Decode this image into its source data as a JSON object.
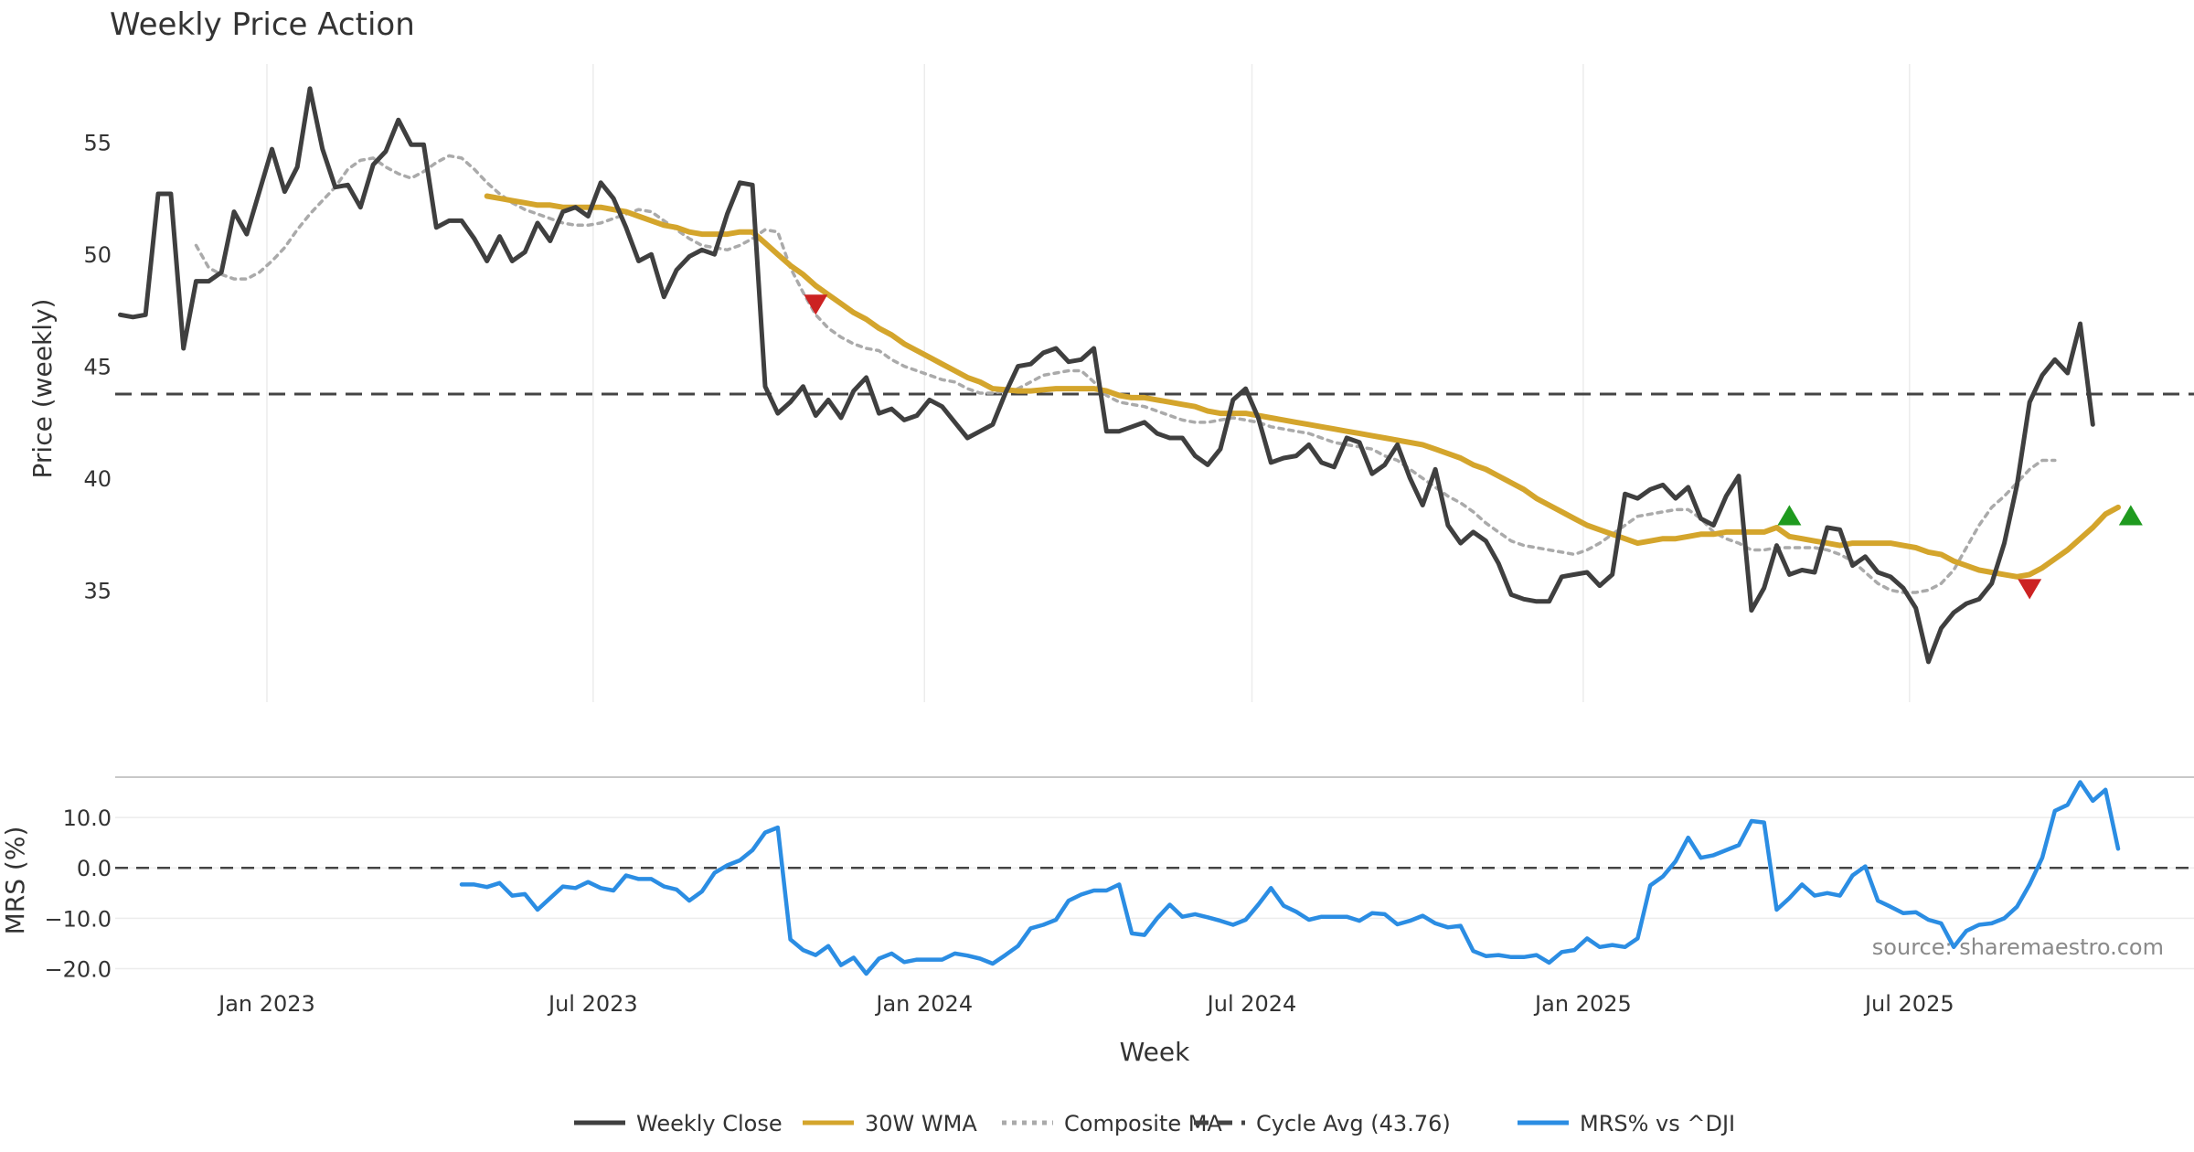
{
  "chart_data": [
    {
      "type": "line",
      "title": "Weekly Price Action",
      "ylabel": "Price (weekly)",
      "xlabel": "",
      "ylim": [
        30,
        58.5
      ],
      "yticks": [
        35,
        40,
        45,
        50,
        55
      ],
      "x_start": "2022-11-07",
      "x_step_weeks": 1,
      "reference_line": {
        "name": "Cycle Avg (43.76)",
        "value": 43.76,
        "style": "dashed"
      },
      "series": [
        {
          "name": "Weekly Close",
          "color": "#3f3f3f",
          "start_index": 0,
          "values": [
            47.3,
            47.2,
            47.3,
            52.7,
            52.7,
            45.8,
            48.8,
            48.8,
            49.2,
            51.9,
            50.9,
            52.8,
            54.7,
            52.8,
            53.9,
            57.4,
            54.7,
            53.0,
            53.1,
            52.1,
            54.0,
            54.6,
            56.0,
            54.9,
            54.9,
            51.2,
            51.5,
            51.5,
            50.7,
            49.7,
            50.8,
            49.7,
            50.1,
            51.4,
            50.6,
            51.9,
            52.1,
            51.7,
            53.2,
            52.5,
            51.2,
            49.7,
            50.0,
            48.1,
            49.3,
            49.9,
            50.2,
            50.0,
            51.8,
            53.2,
            53.1,
            44.1,
            42.9,
            43.4,
            44.1,
            42.8,
            43.5,
            42.7,
            43.9,
            44.5,
            42.9,
            43.1,
            42.6,
            42.8,
            43.5,
            43.2,
            42.5,
            41.8,
            42.1,
            42.4,
            43.8,
            45.0,
            45.1,
            45.6,
            45.8,
            45.2,
            45.3,
            45.8,
            42.1,
            42.1,
            42.3,
            42.5,
            42.0,
            41.8,
            41.8,
            41.0,
            40.6,
            41.3,
            43.5,
            44.0,
            42.7,
            40.7,
            40.9,
            41.0,
            41.5,
            40.7,
            40.5,
            41.8,
            41.6,
            40.2,
            40.6,
            41.5,
            40.0,
            38.8,
            40.4,
            37.9,
            37.1,
            37.6,
            37.2,
            36.2,
            34.8,
            34.6,
            34.5,
            34.5,
            35.6,
            35.7,
            35.8,
            35.2,
            35.7,
            39.3,
            39.1,
            39.5,
            39.7,
            39.1,
            39.6,
            38.2,
            37.9,
            39.2,
            40.1,
            34.1,
            35.1,
            37.0,
            35.7,
            35.9,
            35.8,
            37.8,
            37.7,
            36.1,
            36.5,
            35.8,
            35.6,
            35.1,
            34.2,
            31.8,
            33.3,
            34.0,
            34.4,
            34.6,
            35.3,
            37.1,
            39.7,
            43.4,
            44.6,
            45.3,
            44.7,
            46.9,
            42.4
          ]
        },
        {
          "name": "30W WMA",
          "color": "#d4a52c",
          "start_index": 29,
          "values": [
            52.6,
            52.5,
            52.4,
            52.3,
            52.2,
            52.2,
            52.1,
            52.1,
            52.1,
            52.1,
            52.0,
            51.9,
            51.7,
            51.5,
            51.3,
            51.2,
            51.0,
            50.9,
            50.9,
            50.9,
            51.0,
            51.0,
            50.5,
            50.0,
            49.5,
            49.1,
            48.6,
            48.2,
            47.8,
            47.4,
            47.1,
            46.7,
            46.4,
            46.0,
            45.7,
            45.4,
            45.1,
            44.8,
            44.5,
            44.3,
            44.0,
            43.95,
            43.9,
            43.9,
            43.95,
            44.0,
            44.0,
            44.0,
            44.0,
            43.9,
            43.7,
            43.6,
            43.6,
            43.5,
            43.4,
            43.3,
            43.2,
            43.0,
            42.9,
            42.9,
            42.9,
            42.8,
            42.7,
            42.6,
            42.5,
            42.4,
            42.3,
            42.2,
            42.1,
            42.0,
            41.9,
            41.8,
            41.7,
            41.6,
            41.5,
            41.3,
            41.1,
            40.9,
            40.6,
            40.4,
            40.1,
            39.8,
            39.5,
            39.1,
            38.8,
            38.5,
            38.2,
            37.9,
            37.7,
            37.5,
            37.3,
            37.1,
            37.2,
            37.3,
            37.3,
            37.4,
            37.5,
            37.5,
            37.6,
            37.6,
            37.6,
            37.6,
            37.8,
            37.4,
            37.3,
            37.2,
            37.1,
            37.0,
            37.1,
            37.1,
            37.1,
            37.1,
            37.0,
            36.9,
            36.7,
            36.6,
            36.3,
            36.1,
            35.9,
            35.8,
            35.7,
            35.6,
            35.7,
            36.0,
            36.4,
            36.8,
            37.3,
            37.8,
            38.4,
            38.7
          ]
        },
        {
          "name": "Composite MA",
          "color": "#aaaaaa",
          "start_index": 6,
          "values": [
            50.4,
            49.4,
            49.1,
            48.9,
            48.9,
            49.2,
            49.7,
            50.3,
            51.1,
            51.8,
            52.4,
            53.0,
            53.8,
            54.2,
            54.3,
            53.9,
            53.6,
            53.4,
            53.7,
            54.1,
            54.4,
            54.3,
            53.8,
            53.2,
            52.7,
            52.3,
            52.0,
            51.8,
            51.6,
            51.4,
            51.3,
            51.3,
            51.4,
            51.6,
            51.8,
            52.0,
            51.9,
            51.5,
            51.1,
            50.7,
            50.4,
            50.3,
            50.2,
            50.4,
            50.7,
            51.1,
            51.0,
            49.4,
            48.3,
            47.3,
            46.7,
            46.3,
            46.0,
            45.8,
            45.7,
            45.3,
            45.0,
            44.8,
            44.6,
            44.4,
            44.3,
            44.0,
            43.8,
            43.8,
            43.9,
            44.0,
            44.3,
            44.6,
            44.7,
            44.8,
            44.8,
            44.3,
            43.7,
            43.4,
            43.3,
            43.2,
            43.0,
            42.8,
            42.6,
            42.5,
            42.5,
            42.6,
            42.7,
            42.6,
            42.5,
            42.3,
            42.2,
            42.1,
            42.0,
            41.8,
            41.6,
            41.5,
            41.4,
            41.3,
            41.0,
            40.8,
            40.4,
            40.0,
            39.6,
            39.2,
            38.9,
            38.5,
            38.0,
            37.6,
            37.2,
            37.0,
            36.9,
            36.8,
            36.7,
            36.6,
            36.8,
            37.1,
            37.5,
            37.9,
            38.3,
            38.4,
            38.5,
            38.6,
            38.6,
            38.2,
            37.6,
            37.3,
            37.1,
            36.8,
            36.8,
            36.9,
            36.9,
            36.9,
            36.9,
            36.8,
            36.6,
            36.3,
            35.8,
            35.3,
            35.0,
            34.9,
            34.9,
            35.0,
            35.3,
            35.9,
            36.9,
            37.9,
            38.7,
            39.2,
            39.8,
            40.4,
            40.8,
            40.8
          ]
        }
      ],
      "markers": [
        {
          "type": "down",
          "color": "#cc2222",
          "index": 55,
          "value": 47.8
        },
        {
          "type": "up",
          "color": "#1f9a1f",
          "index": 132,
          "value": 38.3
        },
        {
          "type": "down",
          "color": "#cc2222",
          "index": 151,
          "value": 35.1
        },
        {
          "type": "up",
          "color": "#1f9a1f",
          "index": 159,
          "value": 38.3
        }
      ]
    },
    {
      "type": "line",
      "ylabel": "MRS (%)",
      "xlabel": "Week",
      "ylim": [
        -21,
        18
      ],
      "yticks": [
        -20.0,
        -10.0,
        0.0,
        10.0
      ],
      "ytick_labels": [
        "−20.0",
        "−10.0",
        "0.0",
        "10.0"
      ],
      "reference_line": {
        "value": 0,
        "style": "dashed"
      },
      "series": [
        {
          "name": "MRS% vs ^DJI",
          "color": "#2b8de3",
          "start_index": 27,
          "values": [
            -3.3,
            -3.3,
            -3.8,
            -3.0,
            -5.5,
            -5.2,
            -8.3,
            -6.0,
            -3.7,
            -4.0,
            -2.8,
            -4.0,
            -4.5,
            -1.5,
            -2.2,
            -2.2,
            -3.7,
            -4.3,
            -6.5,
            -4.7,
            -1.0,
            0.5,
            1.5,
            3.5,
            7.0,
            8.0,
            -14.2,
            -16.3,
            -17.3,
            -15.5,
            -19.3,
            -17.8,
            -21.0,
            -18.0,
            -17.0,
            -18.7,
            -18.2,
            -18.2,
            -18.2,
            -17.0,
            -17.4,
            -18.0,
            -19.0,
            -17.3,
            -15.5,
            -12.0,
            -11.3,
            -10.3,
            -6.5,
            -5.3,
            -4.5,
            -4.5,
            -3.3,
            -13.0,
            -13.3,
            -10.0,
            -7.3,
            -9.7,
            -9.2,
            -9.8,
            -10.5,
            -11.3,
            -10.3,
            -7.3,
            -4.0,
            -7.5,
            -8.7,
            -10.3,
            -9.7,
            -9.7,
            -9.7,
            -10.5,
            -9.0,
            -9.2,
            -11.2,
            -10.5,
            -9.5,
            -11.0,
            -11.8,
            -11.5,
            -16.5,
            -17.5,
            -17.3,
            -17.7,
            -17.7,
            -17.3,
            -18.8,
            -16.7,
            -16.3,
            -14.0,
            -15.7,
            -15.3,
            -15.7,
            -14.0,
            -3.5,
            -1.7,
            1.3,
            6.0,
            2.0,
            2.5,
            3.5,
            4.5,
            9.3,
            9.0,
            -8.3,
            -6.0,
            -3.3,
            -5.5,
            -5.0,
            -5.5,
            -1.5,
            0.3,
            -6.5,
            -7.7,
            -9.0,
            -8.8,
            -10.3,
            -11.0,
            -15.7,
            -12.5,
            -11.3,
            -11.0,
            -10.0,
            -7.7,
            -3.3,
            2.0,
            11.3,
            12.5,
            17.0,
            13.3,
            15.5,
            3.8
          ]
        }
      ]
    }
  ],
  "x_axis": {
    "ticks": [
      {
        "index": 11.6,
        "label": "Jan 2023"
      },
      {
        "index": 37.4,
        "label": "Jul 2023"
      },
      {
        "index": 63.6,
        "label": "Jan 2024"
      },
      {
        "index": 89.5,
        "label": "Jul 2024"
      },
      {
        "index": 115.7,
        "label": "Jan 2025"
      },
      {
        "index": 141.5,
        "label": "Jul 2025"
      }
    ],
    "label": "Week",
    "range": [
      -0.4,
      164
    ]
  },
  "legend": {
    "placement": "bottom-center",
    "items": [
      {
        "label": "Weekly Close",
        "color": "#3f3f3f",
        "style": "solid"
      },
      {
        "label": "30W WMA",
        "color": "#d4a52c",
        "style": "solid"
      },
      {
        "label": "Composite MA",
        "color": "#aaaaaa",
        "style": "dotted"
      },
      {
        "label": "Cycle Avg (43.76)",
        "color": "#444444",
        "style": "dashed"
      },
      {
        "label": "MRS% vs ^DJI",
        "color": "#2b8de3",
        "style": "solid"
      }
    ]
  },
  "source": "source: sharemaestro.com"
}
